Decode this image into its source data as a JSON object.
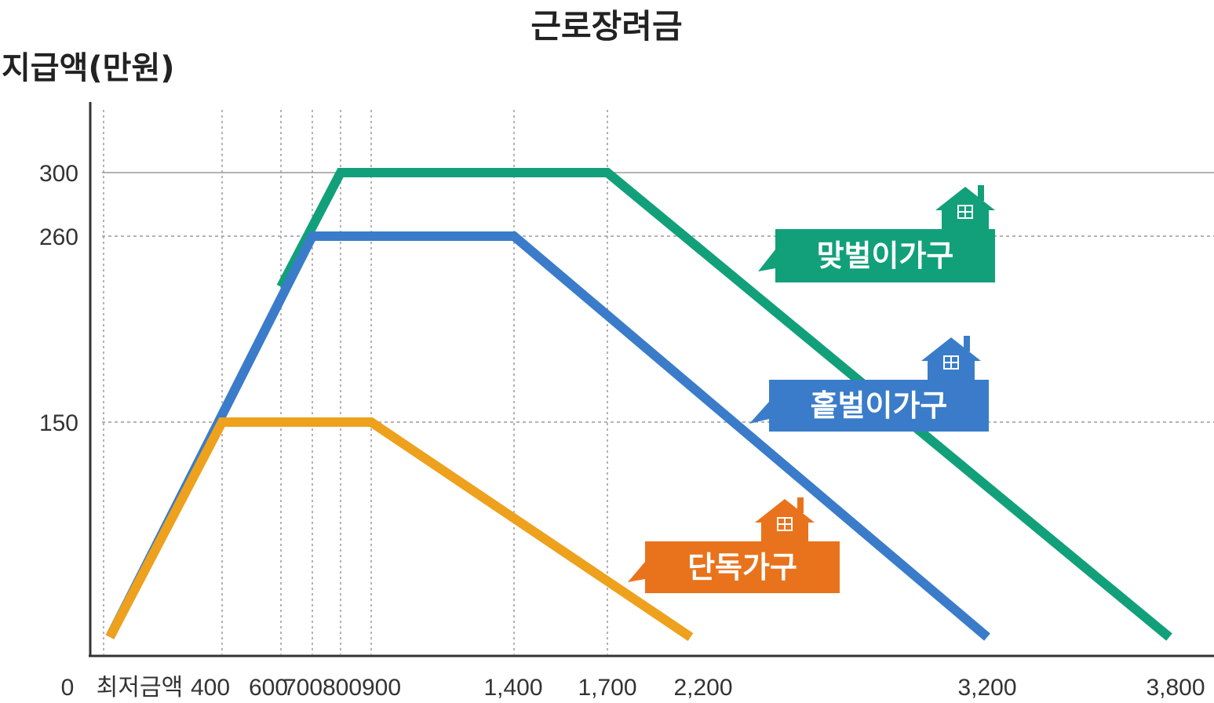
{
  "chart_data": {
    "type": "line",
    "title": "근로장려금",
    "ylabel": "지급액(만원)",
    "xlabel": "",
    "x_tick_labels": [
      {
        "x": 0,
        "label": "0"
      },
      {
        "x": 50,
        "label": "최저금액"
      },
      {
        "x": 400,
        "label": "400"
      },
      {
        "x": 600,
        "label": "600"
      },
      {
        "x": 700,
        "label": "700"
      },
      {
        "x": 800,
        "label": "800"
      },
      {
        "x": 900,
        "label": "900"
      },
      {
        "x": 1400,
        "label": "1,400"
      },
      {
        "x": 1700,
        "label": "1,700"
      },
      {
        "x": 2200,
        "label": "2,200"
      },
      {
        "x": 3200,
        "label": "3,200"
      },
      {
        "x": 3800,
        "label": "3,800"
      }
    ],
    "y_tick_labels": [
      {
        "y": 150,
        "label": "150"
      },
      {
        "y": 260,
        "label": "260"
      },
      {
        "y": 300,
        "label": "300"
      }
    ],
    "ylim": [
      0,
      330
    ],
    "series": [
      {
        "name": "맞벌이가구",
        "color": "#12a07a",
        "points": [
          [
            600,
            230
          ],
          [
            800,
            300
          ],
          [
            1700,
            300
          ],
          [
            3800,
            0
          ]
        ]
      },
      {
        "name": "홑벌이가구",
        "color": "#3a7cc9",
        "points": [
          [
            0,
            0
          ],
          [
            700,
            260
          ],
          [
            1400,
            260
          ],
          [
            3200,
            0
          ]
        ]
      },
      {
        "name": "단독가구",
        "color": "#eea11c",
        "points": [
          [
            0,
            0
          ],
          [
            400,
            150
          ],
          [
            900,
            150
          ],
          [
            2200,
            0
          ]
        ]
      }
    ],
    "labels": [
      {
        "series": 0,
        "text": "맞벌이가구",
        "color": "#12a07a"
      },
      {
        "series": 1,
        "text": "홑벌이가구",
        "color": "#3a7cc9"
      },
      {
        "series": 2,
        "text": "단독가구",
        "color": "#e8731c"
      }
    ],
    "grid": "dotted-vertical-and-horizontal"
  }
}
